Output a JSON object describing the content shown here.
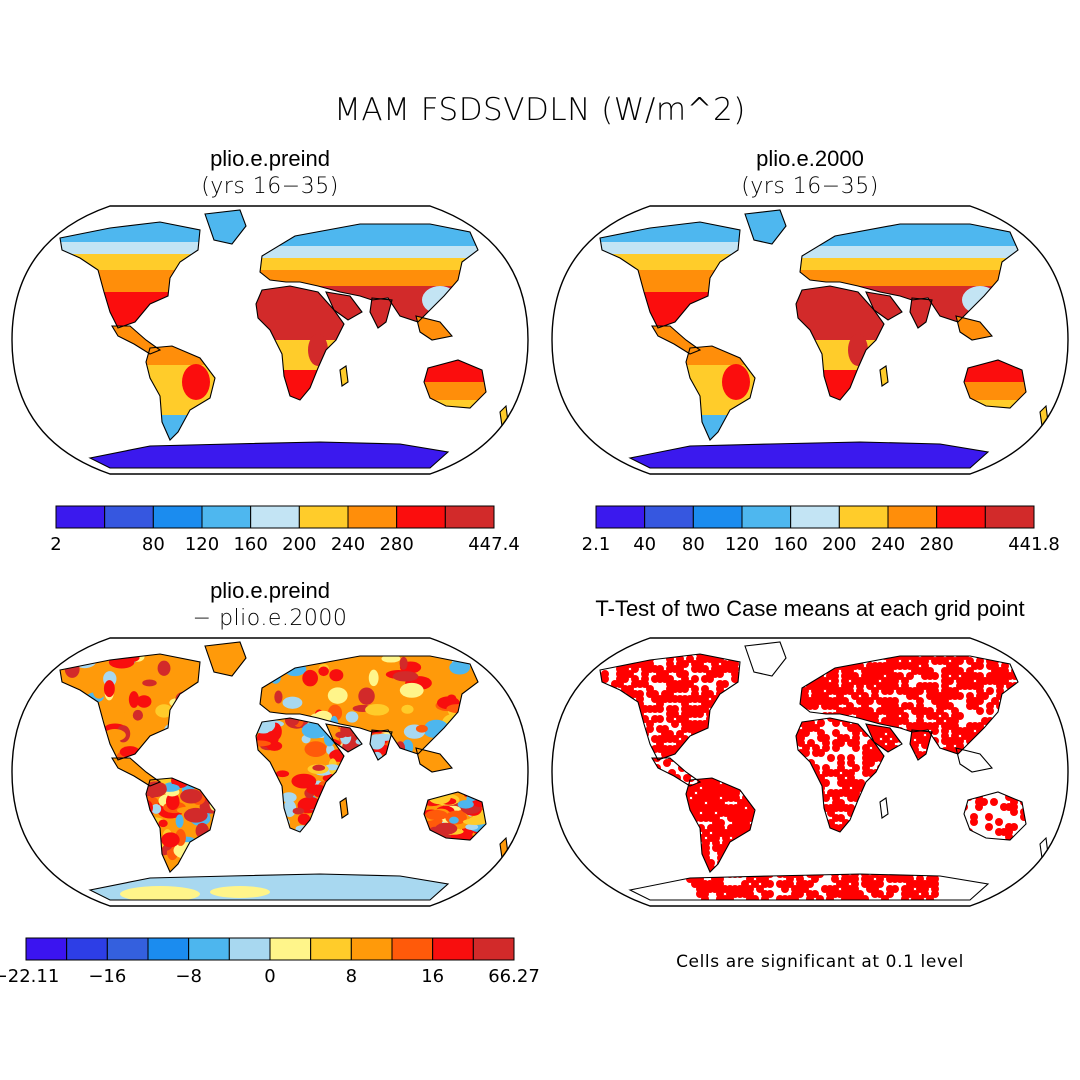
{
  "figure": {
    "title": "MAM FSDSVDLN (W/m^2)"
  },
  "panels": [
    {
      "id": "preind",
      "title": "plio.e.preind",
      "subtitle": "(yrs 16−35)",
      "colorbar": {
        "colors": [
          "#3b19ee",
          "#3657e0",
          "#1b8cef",
          "#4eb7ef",
          "#c3e4f4",
          "#ffcc2a",
          "#ff8e0a",
          "#fb0d0d",
          "#d22a2a"
        ],
        "labels": [
          {
            "text": "2",
            "boundary": 0
          },
          {
            "text": "80",
            "boundary": 2
          },
          {
            "text": "120",
            "boundary": 3
          },
          {
            "text": "160",
            "boundary": 4
          },
          {
            "text": "200",
            "boundary": 5
          },
          {
            "text": "240",
            "boundary": 6
          },
          {
            "text": "280",
            "boundary": 7
          },
          {
            "text": "447.4",
            "boundary": 9
          }
        ]
      }
    },
    {
      "id": "y2000",
      "title": "plio.e.2000",
      "subtitle": "(yrs 16−35)",
      "colorbar": {
        "colors": [
          "#3b19ee",
          "#3657e0",
          "#1b8cef",
          "#4eb7ef",
          "#c3e4f4",
          "#ffcc2a",
          "#ff8e0a",
          "#fb0d0d",
          "#d22a2a"
        ],
        "labels": [
          {
            "text": "2.1",
            "boundary": 0
          },
          {
            "text": "40",
            "boundary": 1
          },
          {
            "text": "80",
            "boundary": 2
          },
          {
            "text": "120",
            "boundary": 3
          },
          {
            "text": "160",
            "boundary": 4
          },
          {
            "text": "200",
            "boundary": 5
          },
          {
            "text": "240",
            "boundary": 6
          },
          {
            "text": "280",
            "boundary": 7
          },
          {
            "text": "441.8",
            "boundary": 9
          }
        ]
      }
    },
    {
      "id": "diff",
      "title": "plio.e.preind",
      "subtitle": "− plio.e.2000",
      "colorbar": {
        "colors": [
          "#3b14f0",
          "#2d3ee6",
          "#3460de",
          "#1b8cef",
          "#4db6ee",
          "#a8d8f0",
          "#fff58a",
          "#ffcc2a",
          "#ff9a0a",
          "#ff5a0a",
          "#f80e0e",
          "#d22a2a"
        ],
        "labels": [
          {
            "text": "−22.11",
            "boundary": 0
          },
          {
            "text": "−16",
            "boundary": 2
          },
          {
            "text": "−8",
            "boundary": 4
          },
          {
            "text": "0",
            "boundary": 6
          },
          {
            "text": "8",
            "boundary": 8
          },
          {
            "text": "16",
            "boundary": 10
          },
          {
            "text": "66.27",
            "boundary": 12
          }
        ]
      }
    },
    {
      "id": "ttest",
      "title": "T-Test of two Case means at each grid point",
      "note": "Cells are significant at 0.1 level",
      "sig_color": "#ff0000"
    }
  ],
  "map_colors": {
    "antarctica_abs": "#3b19ee",
    "antarctica_diff": "#a8d8f0",
    "greenland_abs": "#4eb7ef",
    "high_lat": "#4eb7ef",
    "boreal": "#c3e4f4",
    "temperate": "#ffcc2a",
    "warm": "#ff8e0a",
    "desert": "#d22a2a",
    "tropics": "#fb0d0d"
  }
}
